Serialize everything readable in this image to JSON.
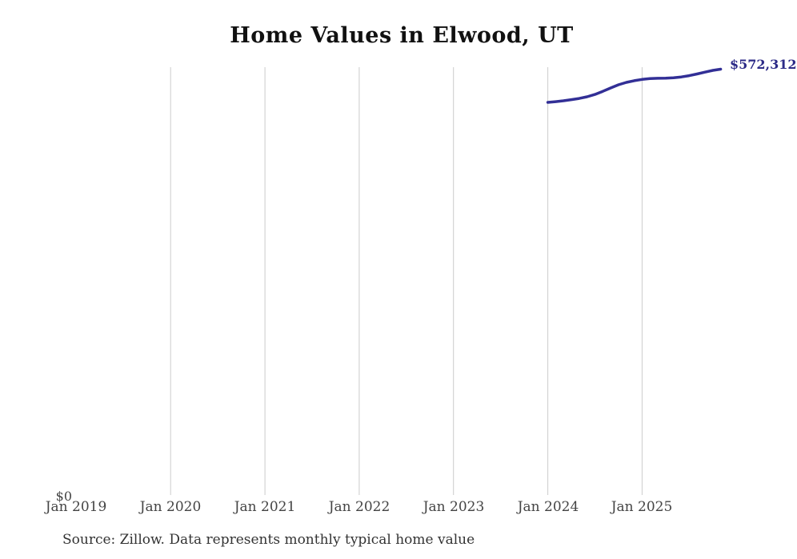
{
  "title": "Home Values in Elwood, UT",
  "source_note": "Source: Zillow. Data represents monthly typical home value",
  "colors": {
    "line": "#322f96",
    "end_label": "#2c2a87",
    "gridline": "#cccccc",
    "tick_label": "#444444",
    "title": "#111111",
    "source": "#333333",
    "background": "#ffffff"
  },
  "chart_data": {
    "type": "line",
    "title": "Home Values in Elwood, UT",
    "xlabel": "",
    "ylabel": "",
    "x_tick_labels": [
      "Jan 2019",
      "Jan 2020",
      "Jan 2021",
      "Jan 2022",
      "Jan 2023",
      "Jan 2024",
      "Jan 2025"
    ],
    "y_tick_labels": [
      "$0"
    ],
    "ylim": [
      0,
      575000
    ],
    "grid": "vertical-only",
    "legend": "none",
    "end_label": "$572,312",
    "series_name": "Typical home value",
    "x": [
      "Jan 2024",
      "Feb 2024",
      "Mar 2024",
      "Apr 2024",
      "May 2024",
      "Jun 2024",
      "Jul 2024",
      "Aug 2024",
      "Sep 2024",
      "Oct 2024",
      "Nov 2024",
      "Dec 2024",
      "Jan 2025",
      "Feb 2025",
      "Mar 2025",
      "Apr 2025",
      "May 2025",
      "Jun 2025",
      "Jul 2025",
      "Aug 2025",
      "Sep 2025",
      "Oct 2025",
      "Nov 2025"
    ],
    "values": [
      527800,
      528800,
      529900,
      531400,
      533100,
      535300,
      538400,
      542600,
      547100,
      551400,
      554600,
      556900,
      558600,
      559700,
      560100,
      560300,
      560800,
      561900,
      563600,
      565900,
      568400,
      570700,
      572312
    ]
  }
}
